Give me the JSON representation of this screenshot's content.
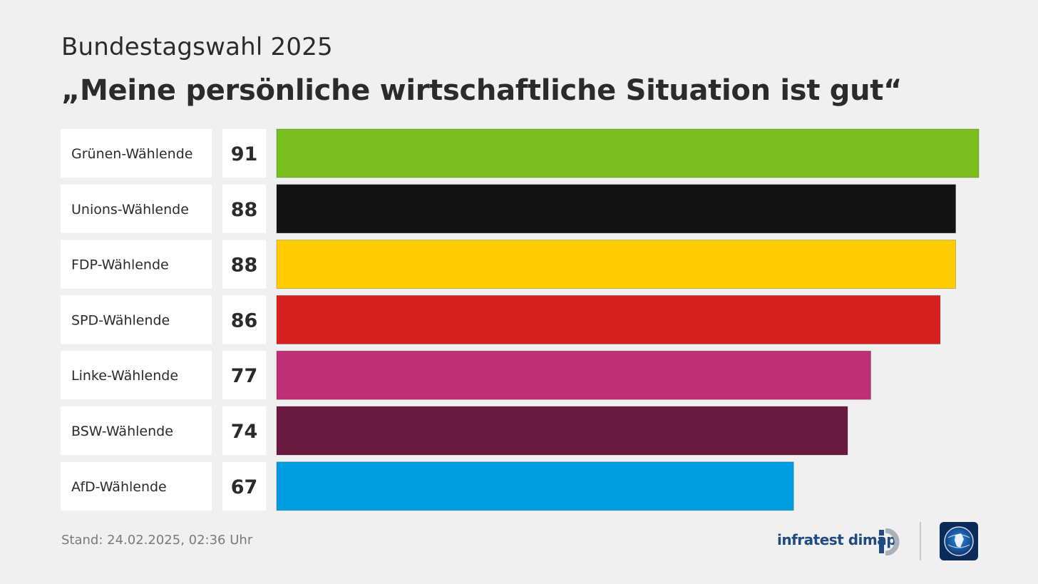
{
  "header": {
    "subtitle": "Bundestagswahl 2025",
    "title": "„Meine persönliche wirtschaftliche Situation ist gut“"
  },
  "chart_data": {
    "type": "bar",
    "orientation": "horizontal",
    "categories": [
      "Grünen-Wählende",
      "Unions-Wählende",
      "FDP-Wählende",
      "SPD-Wählende",
      "Linke-Wählende",
      "BSW-Wählende",
      "AfD-Wählende"
    ],
    "values": [
      91,
      88,
      88,
      86,
      77,
      74,
      67
    ],
    "colors": [
      "#78be1e",
      "#131313",
      "#ffcc00",
      "#d71f1f",
      "#bd3075",
      "#6a1942",
      "#009ee0"
    ],
    "xlim": [
      0,
      91
    ],
    "grid": false,
    "legend": "none"
  },
  "footer": {
    "stand": "Stand:  24.02.2025, 02:36 Uhr",
    "brand": "infratest dimap"
  }
}
